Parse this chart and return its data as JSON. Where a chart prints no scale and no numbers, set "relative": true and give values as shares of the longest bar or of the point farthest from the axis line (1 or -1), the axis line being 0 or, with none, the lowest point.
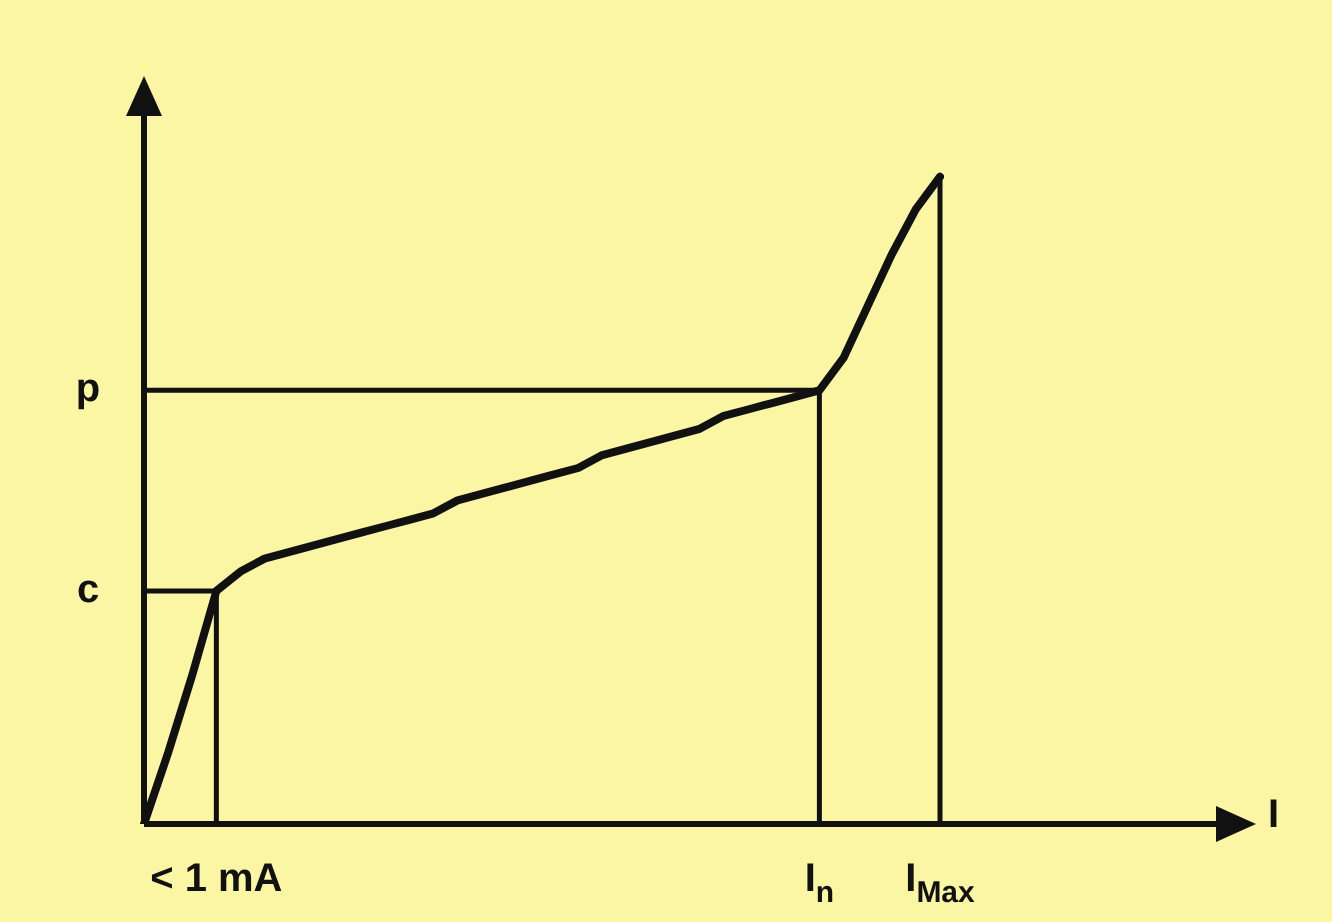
{
  "chart_data": {
    "type": "line",
    "relative": true,
    "annotations": [
      "I"
    ],
    "categories": [
      null,
      null,
      null,
      "< 1 mA",
      null,
      null,
      null,
      null,
      null,
      null,
      null,
      null,
      null,
      null,
      null,
      null,
      null,
      null,
      null,
      null,
      null,
      null,
      null,
      null,
      null,
      null,
      null,
      null,
      "I$_{n}$",
      null,
      null,
      null,
      null,
      "I$_{Max}$"
    ],
    "series": [
      {
        "color": "#111111",
        "values": [
          0,
          0.11,
          0.23,
          0.36,
          0.39,
          0.41,
          0.42,
          0.43,
          0.44,
          0.45,
          0.46,
          0.47,
          0.48,
          0.5,
          0.51,
          0.52,
          0.53,
          0.54,
          0.55,
          0.57,
          0.58,
          0.59,
          0.6,
          0.61,
          0.63,
          0.64,
          0.65,
          0.66,
          0.67,
          0.72,
          0.8,
          0.88,
          0.95,
          1
        ]
      }
    ],
    "ref_lines": [
      {
        "axis": "y",
        "value": 0.36,
        "label": "c"
      },
      {
        "axis": "y",
        "value": 0.67,
        "label": "p"
      },
      {
        "axis": "x",
        "value": "< 1 mA"
      },
      {
        "axis": "x",
        "value": "I$_{n}$"
      },
      {
        "axis": "x",
        "value": "I$_{Max}$"
      }
    ],
    "grid": false,
    "legend": false,
    "marker": "none"
  }
}
